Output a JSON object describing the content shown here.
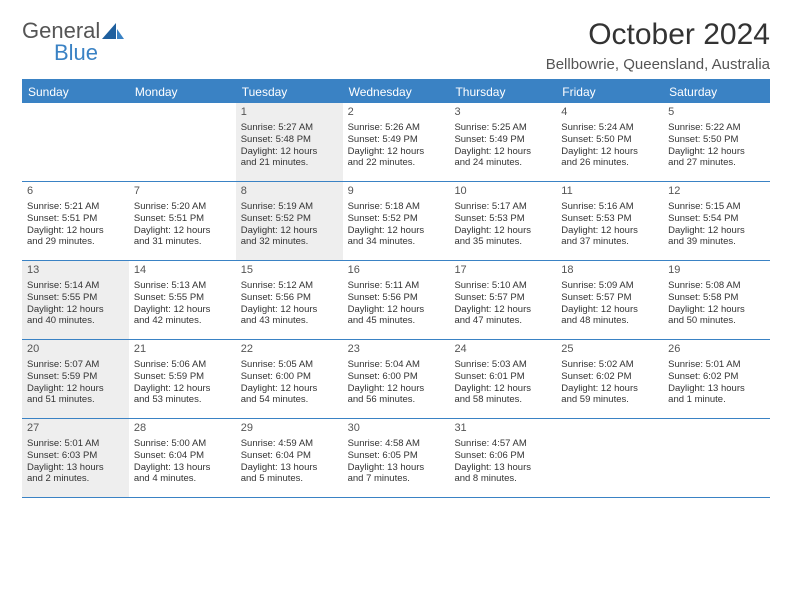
{
  "logo": {
    "general": "General",
    "blue": "Blue"
  },
  "title": "October 2024",
  "subtitle": "Bellbowrie, Queensland, Australia",
  "colors": {
    "accent": "#3a82c4",
    "shade": "#eeeeee",
    "text": "#333333",
    "header_text": "#ffffff"
  },
  "day_headers": [
    "Sunday",
    "Monday",
    "Tuesday",
    "Wednesday",
    "Thursday",
    "Friday",
    "Saturday"
  ],
  "weeks": [
    [
      {
        "blank": true,
        "shaded": false
      },
      {
        "blank": true,
        "shaded": false
      },
      {
        "day": "1",
        "shaded": true,
        "sunrise": "Sunrise: 5:27 AM",
        "sunset": "Sunset: 5:48 PM",
        "daylight1": "Daylight: 12 hours",
        "daylight2": "and 21 minutes."
      },
      {
        "day": "2",
        "shaded": false,
        "sunrise": "Sunrise: 5:26 AM",
        "sunset": "Sunset: 5:49 PM",
        "daylight1": "Daylight: 12 hours",
        "daylight2": "and 22 minutes."
      },
      {
        "day": "3",
        "shaded": false,
        "sunrise": "Sunrise: 5:25 AM",
        "sunset": "Sunset: 5:49 PM",
        "daylight1": "Daylight: 12 hours",
        "daylight2": "and 24 minutes."
      },
      {
        "day": "4",
        "shaded": false,
        "sunrise": "Sunrise: 5:24 AM",
        "sunset": "Sunset: 5:50 PM",
        "daylight1": "Daylight: 12 hours",
        "daylight2": "and 26 minutes."
      },
      {
        "day": "5",
        "shaded": false,
        "sunrise": "Sunrise: 5:22 AM",
        "sunset": "Sunset: 5:50 PM",
        "daylight1": "Daylight: 12 hours",
        "daylight2": "and 27 minutes."
      }
    ],
    [
      {
        "day": "6",
        "shaded": false,
        "sunrise": "Sunrise: 5:21 AM",
        "sunset": "Sunset: 5:51 PM",
        "daylight1": "Daylight: 12 hours",
        "daylight2": "and 29 minutes."
      },
      {
        "day": "7",
        "shaded": false,
        "sunrise": "Sunrise: 5:20 AM",
        "sunset": "Sunset: 5:51 PM",
        "daylight1": "Daylight: 12 hours",
        "daylight2": "and 31 minutes."
      },
      {
        "day": "8",
        "shaded": true,
        "sunrise": "Sunrise: 5:19 AM",
        "sunset": "Sunset: 5:52 PM",
        "daylight1": "Daylight: 12 hours",
        "daylight2": "and 32 minutes."
      },
      {
        "day": "9",
        "shaded": false,
        "sunrise": "Sunrise: 5:18 AM",
        "sunset": "Sunset: 5:52 PM",
        "daylight1": "Daylight: 12 hours",
        "daylight2": "and 34 minutes."
      },
      {
        "day": "10",
        "shaded": false,
        "sunrise": "Sunrise: 5:17 AM",
        "sunset": "Sunset: 5:53 PM",
        "daylight1": "Daylight: 12 hours",
        "daylight2": "and 35 minutes."
      },
      {
        "day": "11",
        "shaded": false,
        "sunrise": "Sunrise: 5:16 AM",
        "sunset": "Sunset: 5:53 PM",
        "daylight1": "Daylight: 12 hours",
        "daylight2": "and 37 minutes."
      },
      {
        "day": "12",
        "shaded": false,
        "sunrise": "Sunrise: 5:15 AM",
        "sunset": "Sunset: 5:54 PM",
        "daylight1": "Daylight: 12 hours",
        "daylight2": "and 39 minutes."
      }
    ],
    [
      {
        "day": "13",
        "shaded": true,
        "sunrise": "Sunrise: 5:14 AM",
        "sunset": "Sunset: 5:55 PM",
        "daylight1": "Daylight: 12 hours",
        "daylight2": "and 40 minutes."
      },
      {
        "day": "14",
        "shaded": false,
        "sunrise": "Sunrise: 5:13 AM",
        "sunset": "Sunset: 5:55 PM",
        "daylight1": "Daylight: 12 hours",
        "daylight2": "and 42 minutes."
      },
      {
        "day": "15",
        "shaded": false,
        "sunrise": "Sunrise: 5:12 AM",
        "sunset": "Sunset: 5:56 PM",
        "daylight1": "Daylight: 12 hours",
        "daylight2": "and 43 minutes."
      },
      {
        "day": "16",
        "shaded": false,
        "sunrise": "Sunrise: 5:11 AM",
        "sunset": "Sunset: 5:56 PM",
        "daylight1": "Daylight: 12 hours",
        "daylight2": "and 45 minutes."
      },
      {
        "day": "17",
        "shaded": false,
        "sunrise": "Sunrise: 5:10 AM",
        "sunset": "Sunset: 5:57 PM",
        "daylight1": "Daylight: 12 hours",
        "daylight2": "and 47 minutes."
      },
      {
        "day": "18",
        "shaded": false,
        "sunrise": "Sunrise: 5:09 AM",
        "sunset": "Sunset: 5:57 PM",
        "daylight1": "Daylight: 12 hours",
        "daylight2": "and 48 minutes."
      },
      {
        "day": "19",
        "shaded": false,
        "sunrise": "Sunrise: 5:08 AM",
        "sunset": "Sunset: 5:58 PM",
        "daylight1": "Daylight: 12 hours",
        "daylight2": "and 50 minutes."
      }
    ],
    [
      {
        "day": "20",
        "shaded": true,
        "sunrise": "Sunrise: 5:07 AM",
        "sunset": "Sunset: 5:59 PM",
        "daylight1": "Daylight: 12 hours",
        "daylight2": "and 51 minutes."
      },
      {
        "day": "21",
        "shaded": false,
        "sunrise": "Sunrise: 5:06 AM",
        "sunset": "Sunset: 5:59 PM",
        "daylight1": "Daylight: 12 hours",
        "daylight2": "and 53 minutes."
      },
      {
        "day": "22",
        "shaded": false,
        "sunrise": "Sunrise: 5:05 AM",
        "sunset": "Sunset: 6:00 PM",
        "daylight1": "Daylight: 12 hours",
        "daylight2": "and 54 minutes."
      },
      {
        "day": "23",
        "shaded": false,
        "sunrise": "Sunrise: 5:04 AM",
        "sunset": "Sunset: 6:00 PM",
        "daylight1": "Daylight: 12 hours",
        "daylight2": "and 56 minutes."
      },
      {
        "day": "24",
        "shaded": false,
        "sunrise": "Sunrise: 5:03 AM",
        "sunset": "Sunset: 6:01 PM",
        "daylight1": "Daylight: 12 hours",
        "daylight2": "and 58 minutes."
      },
      {
        "day": "25",
        "shaded": false,
        "sunrise": "Sunrise: 5:02 AM",
        "sunset": "Sunset: 6:02 PM",
        "daylight1": "Daylight: 12 hours",
        "daylight2": "and 59 minutes."
      },
      {
        "day": "26",
        "shaded": false,
        "sunrise": "Sunrise: 5:01 AM",
        "sunset": "Sunset: 6:02 PM",
        "daylight1": "Daylight: 13 hours",
        "daylight2": "and 1 minute."
      }
    ],
    [
      {
        "day": "27",
        "shaded": true,
        "sunrise": "Sunrise: 5:01 AM",
        "sunset": "Sunset: 6:03 PM",
        "daylight1": "Daylight: 13 hours",
        "daylight2": "and 2 minutes."
      },
      {
        "day": "28",
        "shaded": false,
        "sunrise": "Sunrise: 5:00 AM",
        "sunset": "Sunset: 6:04 PM",
        "daylight1": "Daylight: 13 hours",
        "daylight2": "and 4 minutes."
      },
      {
        "day": "29",
        "shaded": false,
        "sunrise": "Sunrise: 4:59 AM",
        "sunset": "Sunset: 6:04 PM",
        "daylight1": "Daylight: 13 hours",
        "daylight2": "and 5 minutes."
      },
      {
        "day": "30",
        "shaded": false,
        "sunrise": "Sunrise: 4:58 AM",
        "sunset": "Sunset: 6:05 PM",
        "daylight1": "Daylight: 13 hours",
        "daylight2": "and 7 minutes."
      },
      {
        "day": "31",
        "shaded": false,
        "sunrise": "Sunrise: 4:57 AM",
        "sunset": "Sunset: 6:06 PM",
        "daylight1": "Daylight: 13 hours",
        "daylight2": "and 8 minutes."
      },
      {
        "blank": true,
        "shaded": false
      },
      {
        "blank": true,
        "shaded": false
      }
    ]
  ]
}
